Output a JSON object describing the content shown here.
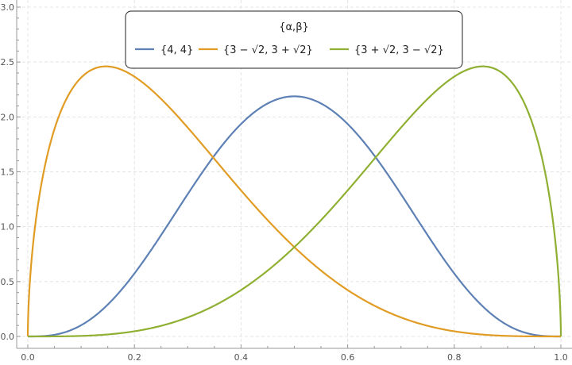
{
  "chart_data": {
    "type": "line",
    "title": "",
    "xlabel": "",
    "ylabel": "",
    "xlim": [
      0,
      1
    ],
    "ylim": [
      0,
      3
    ],
    "grid": true,
    "x_ticks": [
      "0.0",
      "0.2",
      "0.4",
      "0.6",
      "0.8",
      "1.0"
    ],
    "y_ticks": [
      "0.0",
      "0.5",
      "1.0",
      "1.5",
      "2.0",
      "2.5",
      "3.0"
    ],
    "function": "Beta distribution PDF",
    "legend": {
      "title": "{α,β}",
      "placement": "top-center"
    },
    "series": [
      {
        "name": "{4, 4}",
        "alpha": 4,
        "beta": 4,
        "color": "#5E81B5"
      },
      {
        "name": "{3 − √2, 3 + √2}",
        "alpha": 1.5857864,
        "beta": 4.4142136,
        "color": "#E19C24"
      },
      {
        "name": "{3 + √2, 3 − √2}",
        "alpha": 4.4142136,
        "beta": 1.5857864,
        "color": "#8FB032"
      }
    ]
  }
}
